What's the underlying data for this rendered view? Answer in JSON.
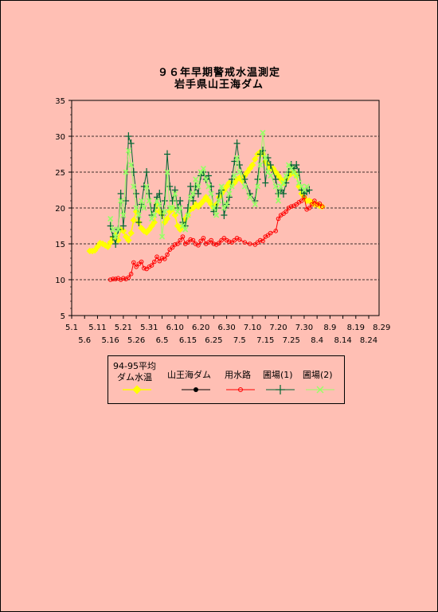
{
  "chart_data": {
    "type": "line",
    "title": "９６年早期警戒水温測定",
    "subtitle": "岩手県山王海ダム",
    "xlabel": "",
    "ylabel": "",
    "ylim": [
      5,
      35
    ],
    "yticks": [
      "5",
      "10",
      "15",
      "20",
      "25",
      "30",
      "35"
    ],
    "x_tick_labels_top": [
      "5.1",
      "5.11",
      "5.21",
      "5.31",
      "6.10",
      "6.20",
      "6.30",
      "7.10",
      "7.20",
      "7.30",
      "8.9",
      "8.19",
      "8.29"
    ],
    "x_tick_labels_bottom": [
      "5.6",
      "5.16",
      "5.26",
      "6.5",
      "6.15",
      "6.25",
      "7.5",
      "7.15",
      "7.25",
      "8.4",
      "8.14",
      "8.24"
    ],
    "grid": "horizontal dashed",
    "legend_position": "bottom",
    "series": [
      {
        "name": "94-95平均 ダム水温",
        "legend_lines": [
          "94-95平均",
          "ダム水温"
        ],
        "color": "#ffff00",
        "marker": "diamond",
        "x": [
          8,
          9,
          10,
          11,
          12,
          13,
          14,
          15,
          16,
          17,
          18,
          19,
          20,
          21,
          22,
          23,
          24,
          25,
          26,
          27,
          28,
          29,
          30,
          31,
          32,
          33,
          34,
          35,
          36,
          37,
          38,
          39,
          40,
          41,
          42,
          43,
          44,
          45,
          46,
          47,
          48,
          49,
          50,
          51,
          52,
          53,
          54,
          55,
          56,
          57,
          58,
          59,
          60,
          61,
          62,
          63,
          64,
          65,
          66,
          67,
          68,
          69,
          70,
          71,
          72,
          73,
          74,
          75,
          76,
          77,
          78,
          79,
          80,
          81,
          82,
          83,
          84,
          85,
          86,
          87,
          88,
          89,
          90,
          91,
          92,
          93,
          94,
          95,
          96,
          97,
          98
        ],
        "y": [
          14.0,
          14.0,
          14.1,
          14.6,
          15.1,
          15.0,
          14.8,
          14.6,
          15.2,
          15.8,
          16.2,
          15.5,
          17.0,
          16.8,
          16.0,
          15.5,
          16.5,
          18.3,
          19.5,
          18.0,
          17.2,
          16.8,
          16.6,
          17.0,
          17.5,
          18.0,
          20.5,
          19.5,
          19.2,
          18.0,
          18.5,
          19.5,
          20.0,
          19.0,
          17.5,
          17.0,
          17.5,
          18.5,
          19.0,
          19.8,
          20.0,
          20.5,
          20.2,
          20.6,
          21.0,
          21.5,
          21.0,
          20.5,
          20.0,
          20.5,
          21.5,
          22.0,
          22.5,
          23.0,
          23.5,
          23.2,
          23.5,
          24.0,
          24.2,
          23.8,
          24.5,
          25.0,
          25.5,
          26.0,
          26.8,
          27.5,
          27.8,
          27.5,
          26.5,
          26.0,
          25.5,
          25.5,
          25.0,
          24.5,
          24.0,
          23.5,
          24.0,
          24.5,
          24.8,
          25.0,
          24.5,
          23.0,
          22.0,
          21.5,
          21.0,
          21.0,
          20.8,
          20.5,
          20.5,
          20.3,
          20.2
        ]
      },
      {
        "name": "山王海ダム",
        "color": "#000000",
        "marker": "circle-filled",
        "x": [],
        "y": []
      },
      {
        "name": "用水路",
        "color": "#ff0000",
        "marker": "circle-open",
        "x": [
          16,
          17,
          18,
          19,
          20,
          21,
          22,
          23,
          24,
          25,
          26,
          27,
          28,
          29,
          30,
          31,
          32,
          33,
          34,
          35,
          36,
          37,
          38,
          39,
          40,
          41,
          42,
          43,
          44,
          45,
          46,
          47,
          48,
          49,
          50,
          51,
          52,
          53,
          54,
          55,
          56,
          57,
          58,
          59,
          60,
          61,
          62,
          63,
          64,
          65,
          66,
          68,
          70,
          72,
          73,
          74,
          75,
          76,
          77,
          78,
          80,
          81,
          82,
          83,
          84,
          85,
          86,
          87,
          88,
          89,
          90,
          91,
          92,
          93,
          94,
          95,
          96,
          97,
          98
        ],
        "y": [
          10.0,
          10.1,
          10.1,
          10.2,
          10.0,
          10.2,
          10.1,
          10.3,
          10.8,
          12.4,
          11.8,
          12.2,
          12.5,
          11.6,
          11.5,
          11.8,
          12.0,
          12.5,
          13.2,
          12.6,
          13.0,
          12.9,
          13.5,
          14.2,
          14.5,
          14.9,
          15.0,
          15.5,
          16.0,
          15.0,
          15.2,
          15.6,
          15.5,
          15.0,
          14.8,
          15.4,
          15.8,
          15.0,
          15.2,
          15.5,
          15.0,
          14.9,
          15.1,
          15.5,
          15.8,
          15.5,
          15.3,
          15.2,
          15.5,
          15.8,
          15.6,
          15.2,
          15.0,
          14.9,
          15.2,
          15.5,
          15.4,
          16.0,
          16.2,
          16.5,
          16.8,
          18.5,
          19.0,
          19.2,
          19.5,
          20.0,
          20.2,
          20.3,
          20.5,
          20.8,
          21.0,
          21.5,
          19.8,
          20.0,
          20.5,
          21.0,
          20.5,
          20.6,
          20.2
        ]
      },
      {
        "name": "圃場(1)",
        "color": "#006633",
        "marker": "plus",
        "x": [
          16,
          17,
          18,
          19,
          20,
          21,
          22,
          23,
          24,
          25,
          26,
          27,
          28,
          29,
          30,
          31,
          32,
          33,
          34,
          35,
          36,
          37,
          38,
          39,
          40,
          41,
          42,
          43,
          44,
          45,
          46,
          47,
          48,
          49,
          50,
          51,
          52,
          53,
          54,
          55,
          56,
          57,
          58,
          59,
          60,
          61,
          62,
          63,
          64,
          65,
          66,
          68,
          70,
          72,
          73,
          74,
          75,
          76,
          77,
          78,
          80,
          81,
          82,
          83,
          84,
          85,
          86,
          87,
          88,
          89,
          90,
          91,
          92,
          93
        ],
        "y": [
          17.5,
          16.0,
          15.0,
          17.0,
          22.0,
          17.5,
          21.0,
          30.0,
          29.0,
          25.0,
          22.0,
          18.0,
          20.5,
          23.0,
          25.0,
          22.0,
          19.0,
          20.0,
          21.5,
          22.0,
          19.0,
          21.0,
          27.5,
          23.0,
          21.0,
          22.5,
          20.0,
          21.0,
          18.0,
          17.5,
          20.0,
          23.0,
          21.0,
          23.0,
          22.0,
          24.5,
          25.0,
          24.0,
          24.5,
          23.0,
          19.5,
          20.0,
          22.0,
          22.5,
          19.0,
          20.5,
          21.5,
          24.0,
          26.5,
          29.0,
          26.0,
          24.0,
          22.0,
          21.0,
          24.0,
          27.5,
          28.0,
          23.5,
          27.0,
          26.0,
          24.0,
          22.0,
          22.5,
          22.0,
          23.5,
          25.0,
          26.0,
          25.5,
          26.0,
          25.0,
          22.5,
          22.0,
          22.3,
          22.5
        ]
      },
      {
        "name": "圃場(2)",
        "color": "#99ff66",
        "marker": "cross",
        "x": [
          16,
          17,
          18,
          19,
          20,
          21,
          22,
          23,
          24,
          25,
          26,
          27,
          28,
          29,
          30,
          31,
          32,
          33,
          34,
          35,
          36,
          37,
          38,
          39,
          40,
          41,
          42,
          43,
          44,
          45,
          46,
          47,
          48,
          49,
          50,
          51,
          52,
          53,
          54,
          55,
          56,
          57,
          58,
          59,
          60,
          61,
          62,
          63,
          64,
          65,
          66,
          68,
          70,
          72,
          73,
          74,
          75,
          76,
          77,
          78,
          80,
          81,
          82,
          83,
          84,
          85,
          86,
          87,
          88,
          89,
          90,
          91,
          92
        ],
        "y": [
          18.5,
          17.0,
          16.0,
          17.0,
          21.0,
          19.0,
          25.0,
          28.0,
          26.0,
          23.0,
          20.0,
          19.0,
          21.0,
          20.0,
          23.0,
          21.0,
          18.5,
          19.0,
          21.0,
          20.5,
          16.0,
          19.5,
          25.0,
          20.0,
          20.0,
          22.0,
          19.5,
          20.0,
          17.5,
          17.0,
          19.0,
          21.5,
          22.0,
          24.0,
          23.0,
          25.0,
          25.5,
          24.0,
          23.0,
          22.0,
          20.0,
          19.0,
          21.0,
          23.0,
          20.0,
          20.5,
          22.0,
          23.0,
          24.5,
          27.0,
          25.0,
          23.0,
          21.5,
          20.5,
          23.0,
          26.0,
          30.5,
          27.0,
          25.0,
          24.5,
          23.0,
          21.0,
          23.0,
          23.5,
          24.5,
          26.0,
          25.5,
          25.0,
          24.5,
          23.5,
          23.0,
          22.5,
          23.0
        ]
      }
    ]
  }
}
